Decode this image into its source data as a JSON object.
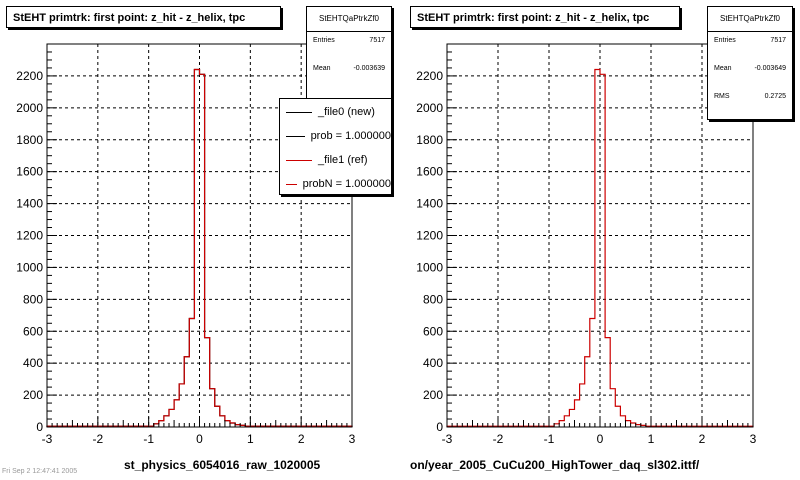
{
  "panels": [
    {
      "title": "StEHT primtrk: first point: z_hit - z_helix, tpc",
      "file_label": "st_physics_6054016_raw_1020005",
      "stats": {
        "name": "StEHTQaPtrkZf0",
        "rows": [
          {
            "label": "Entries",
            "value": "7517"
          },
          {
            "label": "Mean",
            "value": "-0.003639"
          }
        ]
      },
      "legend": [
        {
          "label": "_file0 (new)",
          "color": "#000000"
        },
        {
          "label": "prob = 1.000000",
          "color": "#000000"
        },
        {
          "label": "_file1 (ref)",
          "color": "#cc0000"
        },
        {
          "label": "probN = 1.000000",
          "color": "#cc0000"
        }
      ]
    },
    {
      "title": "StEHT primtrk: first point: z_hit - z_helix, tpc",
      "file_label": "on/year_2005_CuCu200_HighTower_daq_sl302.ittf/",
      "stats": {
        "name": "StEHTQaPtrkZf0",
        "rows": [
          {
            "label": "Entries",
            "value": "7517"
          },
          {
            "label": "Mean",
            "value": "-0.003649"
          },
          {
            "label": "RMS",
            "value": "0.2725"
          }
        ]
      },
      "legend": []
    }
  ],
  "footer_text": "Fri Sep  2 12:47:41 2005",
  "chart_data": [
    {
      "type": "histogram",
      "title": "StEHT primtrk: first point: z_hit - z_helix, tpc",
      "xlim": [
        -3,
        3
      ],
      "ylim": [
        0,
        2400
      ],
      "xticks": [
        -3,
        -2,
        -1,
        0,
        1,
        2,
        3
      ],
      "yticks": [
        0,
        200,
        400,
        600,
        800,
        1000,
        1200,
        1400,
        1600,
        1800,
        2000,
        2200
      ],
      "grid": true,
      "bin_edges": [
        -3,
        -0.9,
        -0.8,
        -0.7,
        -0.6,
        -0.5,
        -0.4,
        -0.3,
        -0.2,
        -0.1,
        0,
        0.1,
        0.2,
        0.3,
        0.4,
        0.5,
        0.6,
        0.7,
        0.8,
        0.9,
        3
      ],
      "series": [
        {
          "name": "_file0 (new)",
          "color": "#000000",
          "values": [
            5,
            20,
            40,
            70,
            110,
            170,
            270,
            440,
            680,
            2240,
            2210,
            560,
            240,
            130,
            70,
            40,
            25,
            15,
            10,
            5
          ]
        },
        {
          "name": "_file1 (ref)",
          "color": "#cc0000",
          "values": [
            5,
            20,
            40,
            70,
            110,
            170,
            270,
            440,
            680,
            2240,
            2210,
            560,
            240,
            130,
            70,
            40,
            25,
            15,
            10,
            5
          ]
        }
      ]
    },
    {
      "type": "histogram",
      "title": "StEHT primtrk: first point: z_hit - z_helix, tpc",
      "xlim": [
        -3,
        3
      ],
      "ylim": [
        0,
        2400
      ],
      "xticks": [
        -3,
        -2,
        -1,
        0,
        1,
        2,
        3
      ],
      "yticks": [
        0,
        200,
        400,
        600,
        800,
        1000,
        1200,
        1400,
        1600,
        1800,
        2000,
        2200
      ],
      "grid": true,
      "bin_edges": [
        -3,
        -0.9,
        -0.8,
        -0.7,
        -0.6,
        -0.5,
        -0.4,
        -0.3,
        -0.2,
        -0.1,
        0,
        0.1,
        0.2,
        0.3,
        0.4,
        0.5,
        0.6,
        0.7,
        0.8,
        0.9,
        3
      ],
      "series": [
        {
          "name": "_file1 (ref)",
          "color": "#cc0000",
          "values": [
            5,
            20,
            40,
            70,
            110,
            170,
            270,
            440,
            680,
            2240,
            2210,
            560,
            240,
            130,
            70,
            40,
            25,
            15,
            10,
            5
          ]
        }
      ]
    }
  ]
}
